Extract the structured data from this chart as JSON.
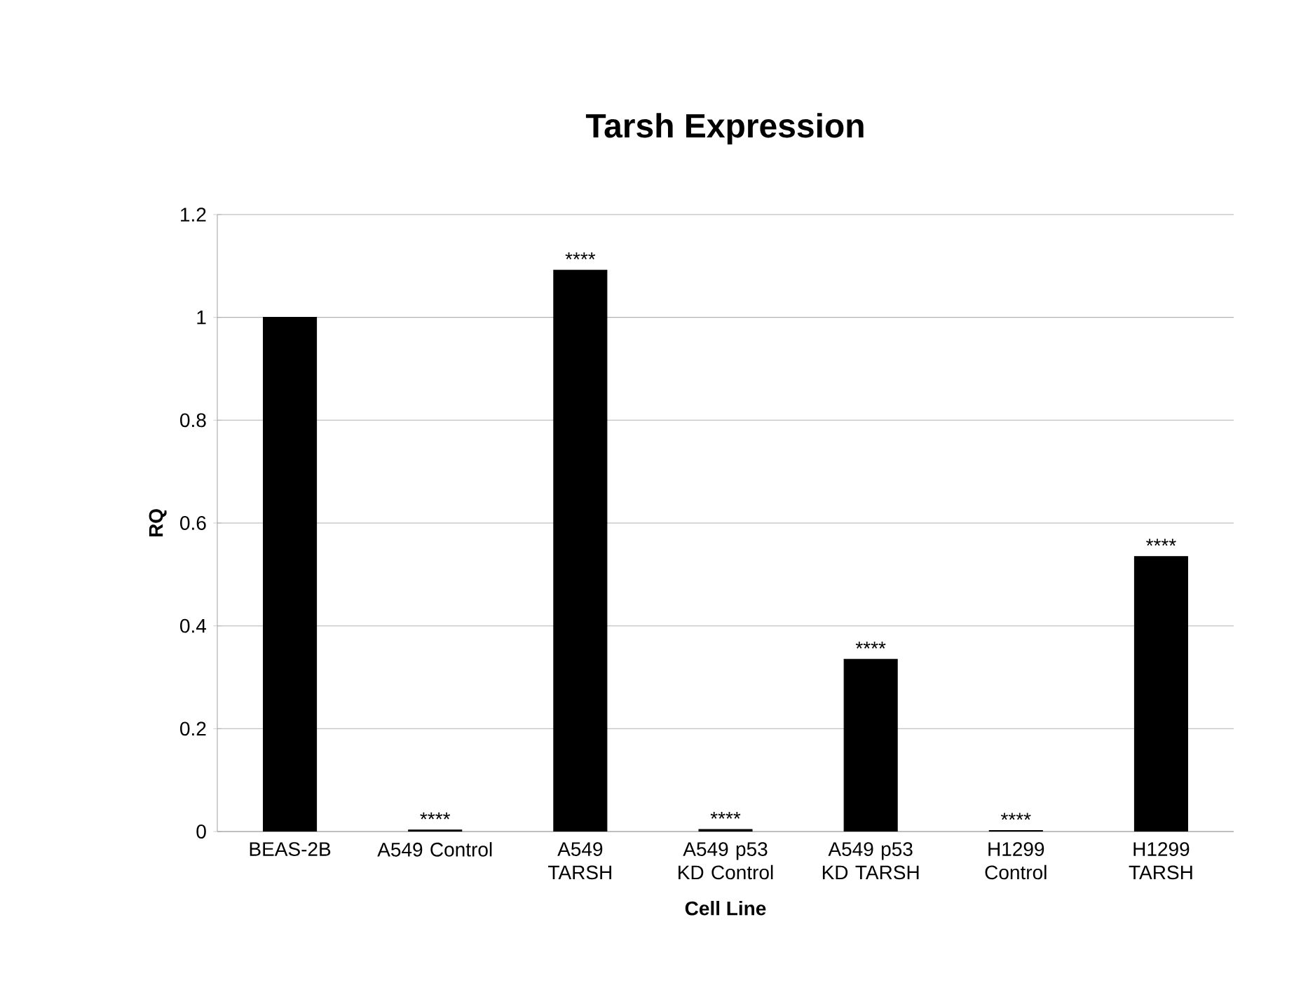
{
  "chart_data": {
    "type": "bar",
    "title": "Tarsh Expression",
    "xlabel": "Cell Line",
    "ylabel": "RQ",
    "categories": [
      "BEAS-2B",
      "A549 Control",
      "A549 TARSH",
      "A549 p53 KD Control",
      "A549 p53 KD TARSH",
      "H1299 Control",
      "H1299 TARSH"
    ],
    "values": [
      1.0,
      0.003,
      1.092,
      0.004,
      0.335,
      0.002,
      0.535
    ],
    "color": "#000000",
    "ylim": [
      0,
      1.2
    ],
    "yticks": [
      0,
      0.2,
      0.4,
      0.6,
      0.8,
      1,
      1.2
    ],
    "grid": "y",
    "annotations": [
      {
        "text": "****",
        "x": "A549 Control",
        "y": 0.003
      },
      {
        "text": "****",
        "x": "A549 TARSH",
        "y": 1.092
      },
      {
        "text": "****",
        "x": "A549 p53 KD Control",
        "y": 0.004
      },
      {
        "text": "****",
        "x": "A549 p53 KD TARSH",
        "y": 0.335
      },
      {
        "text": "****",
        "x": "H1299 Control",
        "y": 0.002
      },
      {
        "text": "****",
        "x": "H1299 TARSH",
        "y": 0.535
      }
    ]
  }
}
